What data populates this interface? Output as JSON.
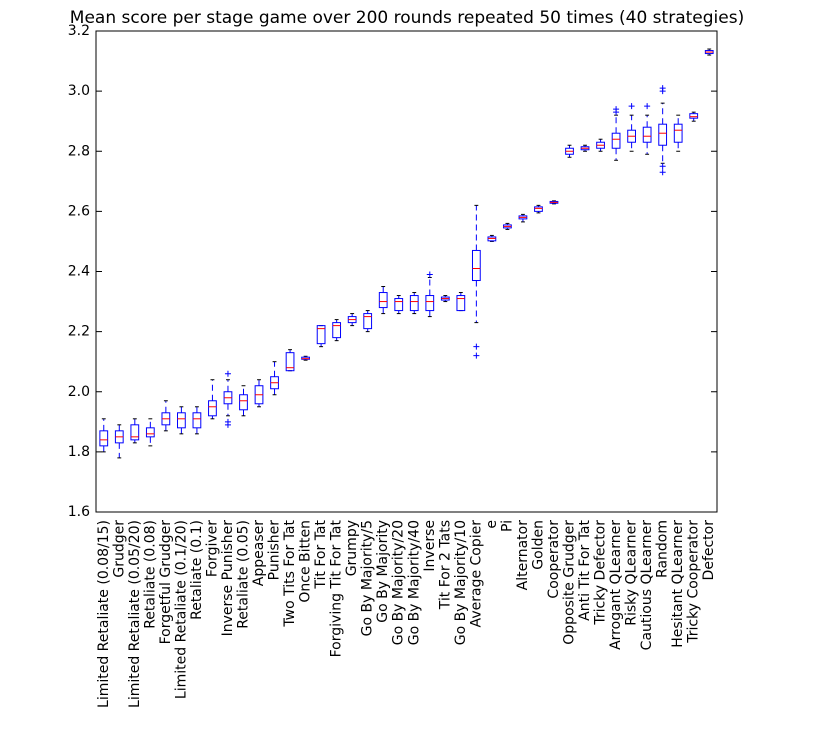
{
  "chart_data": {
    "type": "box",
    "title": "Mean score per stage game over 200 rounds repeated 50 times (40 strategies)",
    "categories": [
      "Limited Retaliate (0.08/15)",
      "Grudger",
      "Limited Retaliate (0.05/20)",
      "Retaliate (0.08)",
      "Forgetful Grudger",
      "Limited Retaliate (0.1/20)",
      "Retaliate (0.1)",
      "Forgiver",
      "Inverse Punisher",
      "Retaliate (0.05)",
      "Appeaser",
      "Punisher",
      "Two Tits For Tat",
      "Once Bitten",
      "Tit For Tat",
      "Forgiving Tit For Tat",
      "Grumpy",
      "Go By Majority/5",
      "Go By Majority",
      "Go By Majority/20",
      "Go By Majority/40",
      "Inverse",
      "Tit For 2 Tats",
      "Go By Majority/10",
      "Average Copier",
      "e",
      "Pi",
      "Alternator",
      "Golden",
      "Cooperator",
      "Opposite Grudger",
      "Anti Tit For Tat",
      "Tricky Defector",
      "Arrogant QLearner",
      "Risky QLearner",
      "Cautious QLearner",
      "Random",
      "Hesitant QLearner",
      "Tricky Cooperator",
      "Defector"
    ],
    "whisker_low": [
      1.8,
      1.78,
      1.83,
      1.82,
      1.87,
      1.86,
      1.86,
      1.91,
      1.92,
      1.92,
      1.95,
      1.99,
      2.07,
      2.105,
      2.15,
      2.17,
      2.22,
      2.2,
      2.26,
      2.26,
      2.26,
      2.25,
      2.3,
      2.27,
      2.23,
      2.5,
      2.54,
      2.565,
      2.595,
      2.625,
      2.78,
      2.8,
      2.8,
      2.77,
      2.8,
      2.79,
      2.76,
      2.8,
      2.9,
      3.12
    ],
    "q1": [
      1.82,
      1.83,
      1.84,
      1.85,
      1.89,
      1.88,
      1.88,
      1.92,
      1.96,
      1.94,
      1.96,
      2.01,
      2.07,
      2.108,
      2.16,
      2.18,
      2.23,
      2.21,
      2.28,
      2.27,
      2.27,
      2.27,
      2.305,
      2.27,
      2.37,
      2.502,
      2.545,
      2.575,
      2.6,
      2.627,
      2.79,
      2.805,
      2.81,
      2.81,
      2.83,
      2.83,
      2.82,
      2.83,
      2.91,
      3.125
    ],
    "median": [
      1.84,
      1.85,
      1.85,
      1.86,
      1.91,
      1.91,
      1.91,
      1.95,
      1.98,
      1.97,
      1.99,
      2.03,
      2.08,
      2.11,
      2.21,
      2.22,
      2.24,
      2.25,
      2.3,
      2.3,
      2.3,
      2.3,
      2.31,
      2.31,
      2.41,
      2.51,
      2.55,
      2.58,
      2.61,
      2.63,
      2.8,
      2.81,
      2.82,
      2.84,
      2.85,
      2.85,
      2.86,
      2.87,
      2.915,
      3.13
    ],
    "q3": [
      1.87,
      1.87,
      1.89,
      1.88,
      1.93,
      1.93,
      1.93,
      1.97,
      2.0,
      1.99,
      2.02,
      2.05,
      2.13,
      2.115,
      2.22,
      2.23,
      2.25,
      2.26,
      2.33,
      2.31,
      2.32,
      2.32,
      2.315,
      2.32,
      2.47,
      2.515,
      2.555,
      2.585,
      2.615,
      2.633,
      2.81,
      2.815,
      2.83,
      2.86,
      2.87,
      2.88,
      2.89,
      2.89,
      2.925,
      3.135
    ],
    "whisker_high": [
      1.91,
      1.89,
      1.91,
      1.91,
      1.97,
      1.95,
      1.95,
      2.04,
      2.04,
      2.02,
      2.04,
      2.1,
      2.14,
      2.118,
      2.22,
      2.24,
      2.26,
      2.27,
      2.35,
      2.32,
      2.33,
      2.38,
      2.32,
      2.33,
      2.62,
      2.52,
      2.56,
      2.59,
      2.62,
      2.635,
      2.82,
      2.82,
      2.84,
      2.92,
      2.92,
      2.92,
      2.96,
      2.92,
      2.93,
      3.14
    ],
    "outliers": [
      [],
      [],
      [],
      [],
      [],
      [],
      [],
      [],
      [
        1.89,
        1.9,
        2.06
      ],
      [],
      [],
      [],
      [],
      [],
      [],
      [],
      [],
      [],
      [],
      [],
      [],
      [
        2.39
      ],
      [],
      [],
      [
        2.12,
        2.15
      ],
      [],
      [],
      [],
      [],
      [],
      [],
      [],
      [],
      [
        2.93,
        2.94
      ],
      [
        2.95
      ],
      [
        2.95
      ],
      [
        2.73,
        2.75,
        3.0,
        3.01
      ],
      [],
      [],
      []
    ],
    "box_color": "#0000ff",
    "median_color": "#ff0000",
    "whisker_style": "dashed",
    "ylim": [
      1.6,
      3.2
    ],
    "yticks": [
      1.6,
      1.8,
      {
        "value": 2.0,
        "label": "2.0"
      },
      2.2,
      2.4,
      2.6,
      2.8,
      {
        "value": 3.0,
        "label": "3.0"
      },
      3.2
    ],
    "grid": false
  }
}
